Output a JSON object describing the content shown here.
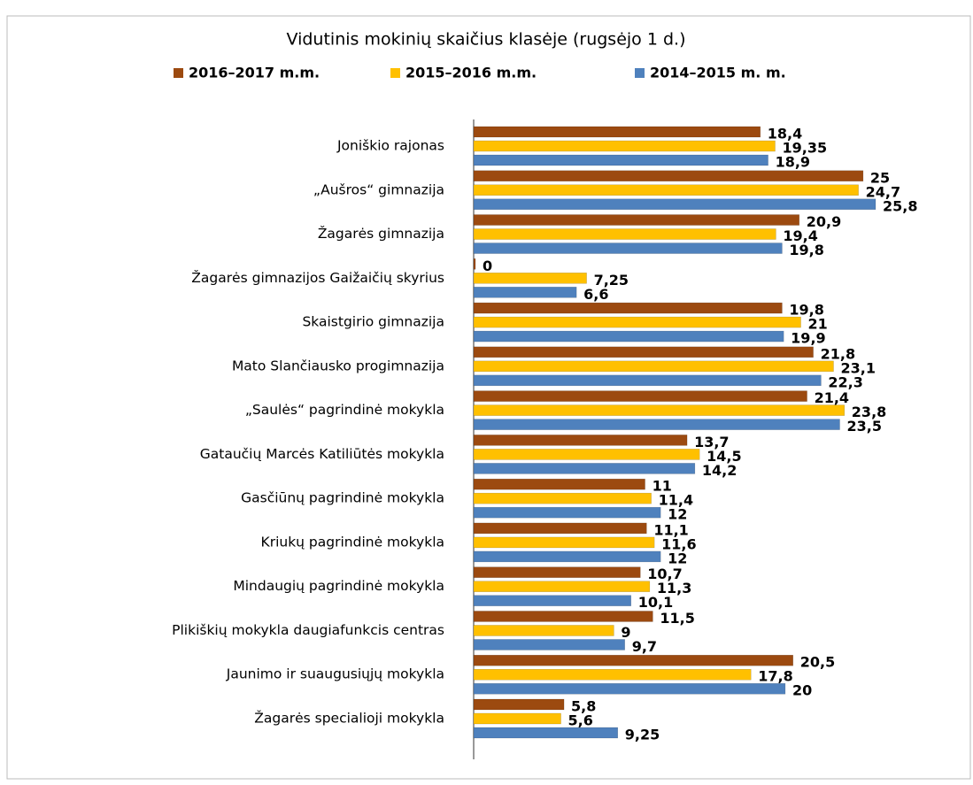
{
  "chart_data": {
    "type": "bar",
    "orientation": "horizontal",
    "title": "Vidutinis mokinių skaičius klasėje (rugsėjo 1 d.)",
    "categories": [
      "Joniškio rajonas",
      "„Aušros“ gimnazija",
      "Žagarės gimnazija",
      "Žagarės gimnazijos  Gaižaičių skyrius",
      "Skaistgirio gimnazija",
      "Mato Slančiausko progimnazija",
      "„Saulės“ pagrindinė mokykla",
      "Gataučių Marcės Katiliūtės mokykla",
      "Gasčiūnų pagrindinė mokykla",
      "Kriukų pagrindinė mokykla",
      "Mindaugių pagrindinė mokykla",
      "Plikiškių mokykla daugiafunkcis centras",
      "Jaunimo ir suaugusiųjų mokykla",
      "Žagarės specialioji mokykla"
    ],
    "series": [
      {
        "name": "2016–2017 m.m.",
        "color": "#9c4a10",
        "values": [
          18.4,
          25,
          20.9,
          0,
          19.8,
          21.8,
          21.4,
          13.7,
          11,
          11.1,
          10.7,
          11.5,
          20.5,
          5.8
        ],
        "value_labels": [
          "18,4",
          "25",
          "20,9",
          "0",
          "19,8",
          "21,8",
          "21,4",
          "13,7",
          "11",
          "11,1",
          "10,7",
          "11,5",
          "20,5",
          "5,8"
        ]
      },
      {
        "name": "2015–2016 m.m.",
        "color": "#ffc000",
        "values": [
          19.35,
          24.7,
          19.4,
          7.25,
          21,
          23.1,
          23.8,
          14.5,
          11.4,
          11.6,
          11.3,
          9,
          17.8,
          5.6
        ],
        "value_labels": [
          "19,35",
          "24,7",
          "19,4",
          "7,25",
          "21",
          "23,1",
          "23,8",
          "14,5",
          "11,4",
          "11,6",
          "11,3",
          "9",
          "17,8",
          "5,6"
        ]
      },
      {
        "name": "2014–2015 m. m.",
        "color": "#4f81bd",
        "values": [
          18.9,
          25.8,
          19.8,
          6.6,
          19.9,
          22.3,
          23.5,
          14.2,
          12,
          12,
          10.1,
          9.7,
          20,
          9.25
        ],
        "value_labels": [
          "18,9",
          "25,8",
          "19,8",
          "6,6",
          "19,9",
          "22,3",
          "23,5",
          "14,2",
          "12",
          "12",
          "10,1",
          "9,7",
          "20",
          "9,25"
        ]
      }
    ]
  }
}
